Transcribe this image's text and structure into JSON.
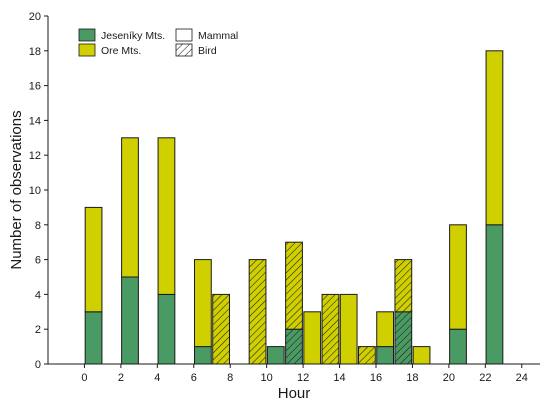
{
  "chart_data": {
    "type": "bar",
    "stacked": true,
    "xlabel": "Hour",
    "ylabel": "Number of observations",
    "xlim": [
      -2,
      25
    ],
    "ylim": [
      0,
      20
    ],
    "x_ticks": [
      0,
      2,
      4,
      6,
      8,
      10,
      12,
      14,
      16,
      18,
      20,
      22,
      24
    ],
    "y_ticks": [
      0,
      2,
      4,
      6,
      8,
      10,
      12,
      14,
      16,
      18,
      20
    ],
    "grid": false,
    "legend_position": "top-left",
    "colors": {
      "jeseniky": "#4a9a63",
      "ore": "#d0d000",
      "outline": "#1a1a1a"
    },
    "legend": {
      "colors": [
        {
          "name": "Jeseníky Mts.",
          "color": "#4a9a63"
        },
        {
          "name": "Ore Mts.",
          "color": "#d0d000"
        }
      ],
      "patterns": [
        {
          "name": "Mammal",
          "hatched": false
        },
        {
          "name": "Bird",
          "hatched": true
        }
      ]
    },
    "bars": [
      {
        "x": 0.5,
        "group": "Mammal",
        "jeseniky": 3,
        "ore": 6
      },
      {
        "x": 2.5,
        "group": "Mammal",
        "jeseniky": 5,
        "ore": 8
      },
      {
        "x": 4.5,
        "group": "Mammal",
        "jeseniky": 4,
        "ore": 9
      },
      {
        "x": 6.5,
        "group": "Mammal",
        "jeseniky": 1,
        "ore": 5
      },
      {
        "x": 7.5,
        "group": "Bird",
        "jeseniky": 0,
        "ore": 4
      },
      {
        "x": 9.5,
        "group": "Bird",
        "jeseniky": 0,
        "ore": 6
      },
      {
        "x": 10.5,
        "group": "Mammal",
        "jeseniky": 1,
        "ore": 0
      },
      {
        "x": 11.5,
        "group": "Bird",
        "jeseniky": 2,
        "ore": 5
      },
      {
        "x": 12.5,
        "group": "Mammal",
        "jeseniky": 0,
        "ore": 3
      },
      {
        "x": 13.5,
        "group": "Bird",
        "jeseniky": 0,
        "ore": 4
      },
      {
        "x": 14.5,
        "group": "Mammal",
        "jeseniky": 0,
        "ore": 4
      },
      {
        "x": 15.5,
        "group": "Bird",
        "jeseniky": 0,
        "ore": 1
      },
      {
        "x": 16.5,
        "group": "Mammal",
        "jeseniky": 1,
        "ore": 2
      },
      {
        "x": 17.5,
        "group": "Bird",
        "jeseniky": 3,
        "ore": 3
      },
      {
        "x": 18.5,
        "group": "Mammal",
        "jeseniky": 0,
        "ore": 1
      },
      {
        "x": 20.5,
        "group": "Mammal",
        "jeseniky": 2,
        "ore": 6
      },
      {
        "x": 22.5,
        "group": "Mammal",
        "jeseniky": 8,
        "ore": 10
      }
    ]
  }
}
